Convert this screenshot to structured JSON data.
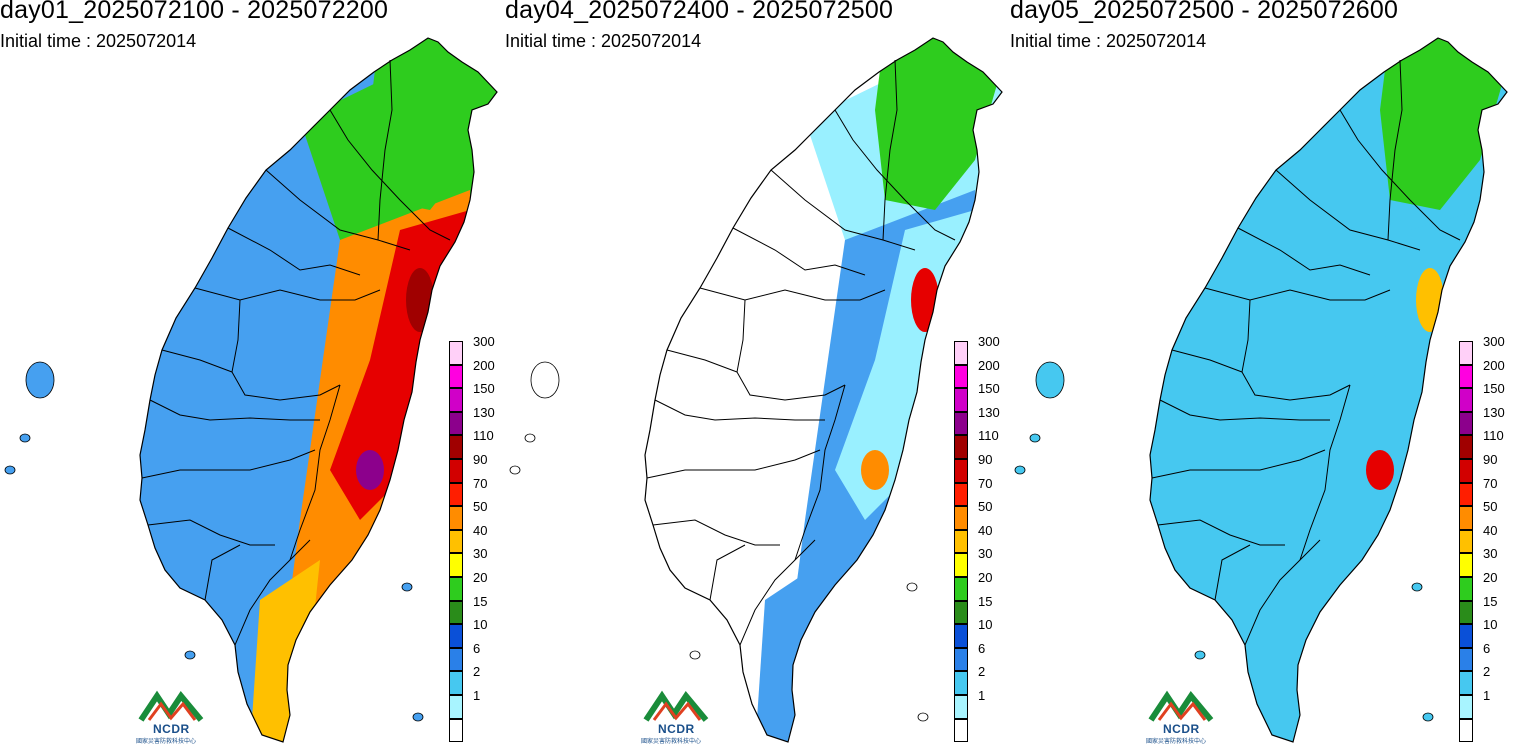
{
  "panels": [
    {
      "title": "day01_2025072100 - 2025072200",
      "subtitle": "Initial time : 2025072014",
      "fields": {
        "west": "#46a0f0",
        "east": "#2ecc1e",
        "mountain": "#ff8c00",
        "eastcoast": "#e60000",
        "north": "#2ecc1e",
        "south": "#ffc000",
        "hot1": "#a00000",
        "hot2": "#8c008c"
      }
    },
    {
      "title": "day04_2025072400 - 2025072500",
      "subtitle": "Initial time : 2025072014",
      "fields": {
        "west": "#ffffff",
        "east": "#99f0ff",
        "mountain": "#46a0f0",
        "eastcoast": "#99f0ff",
        "north": "#2ecc1e",
        "south": "#46a0f0",
        "hot1": "#e60000",
        "hot2": "#ff8c00"
      }
    },
    {
      "title": "day05_2025072500 - 2025072600",
      "subtitle": "Initial time : 2025072014",
      "fields": {
        "west": "#46c8f0",
        "east": "#46c8f0",
        "mountain": "#46c8f0",
        "eastcoast": "#46c8f0",
        "north": "#2ecc1e",
        "south": "#46c8f0",
        "hot1": "#ffc000",
        "hot2": "#e60000"
      }
    }
  ],
  "legend": [
    {
      "label": "300",
      "color": "#ffd0f8"
    },
    {
      "label": "200",
      "color": "#ff00e0"
    },
    {
      "label": "150",
      "color": "#d000c8"
    },
    {
      "label": "130",
      "color": "#8c008c"
    },
    {
      "label": "110",
      "color": "#a00000"
    },
    {
      "label": "90",
      "color": "#d20000"
    },
    {
      "label": "70",
      "color": "#ff1e00"
    },
    {
      "label": "50",
      "color": "#ff8c00"
    },
    {
      "label": "40",
      "color": "#ffc000"
    },
    {
      "label": "30",
      "color": "#ffff00"
    },
    {
      "label": "20",
      "color": "#2ecc1e"
    },
    {
      "label": "15",
      "color": "#2a8c1a"
    },
    {
      "label": "10",
      "color": "#0a50d8"
    },
    {
      "label": "6",
      "color": "#2a80e8"
    },
    {
      "label": "2",
      "color": "#46c8f0"
    },
    {
      "label": "1",
      "color": "#a8f4ff"
    },
    {
      "label": "",
      "color": "#ffffff"
    }
  ],
  "logo": {
    "text": "NCDR",
    "subtext": "國家災害防救科技中心"
  }
}
